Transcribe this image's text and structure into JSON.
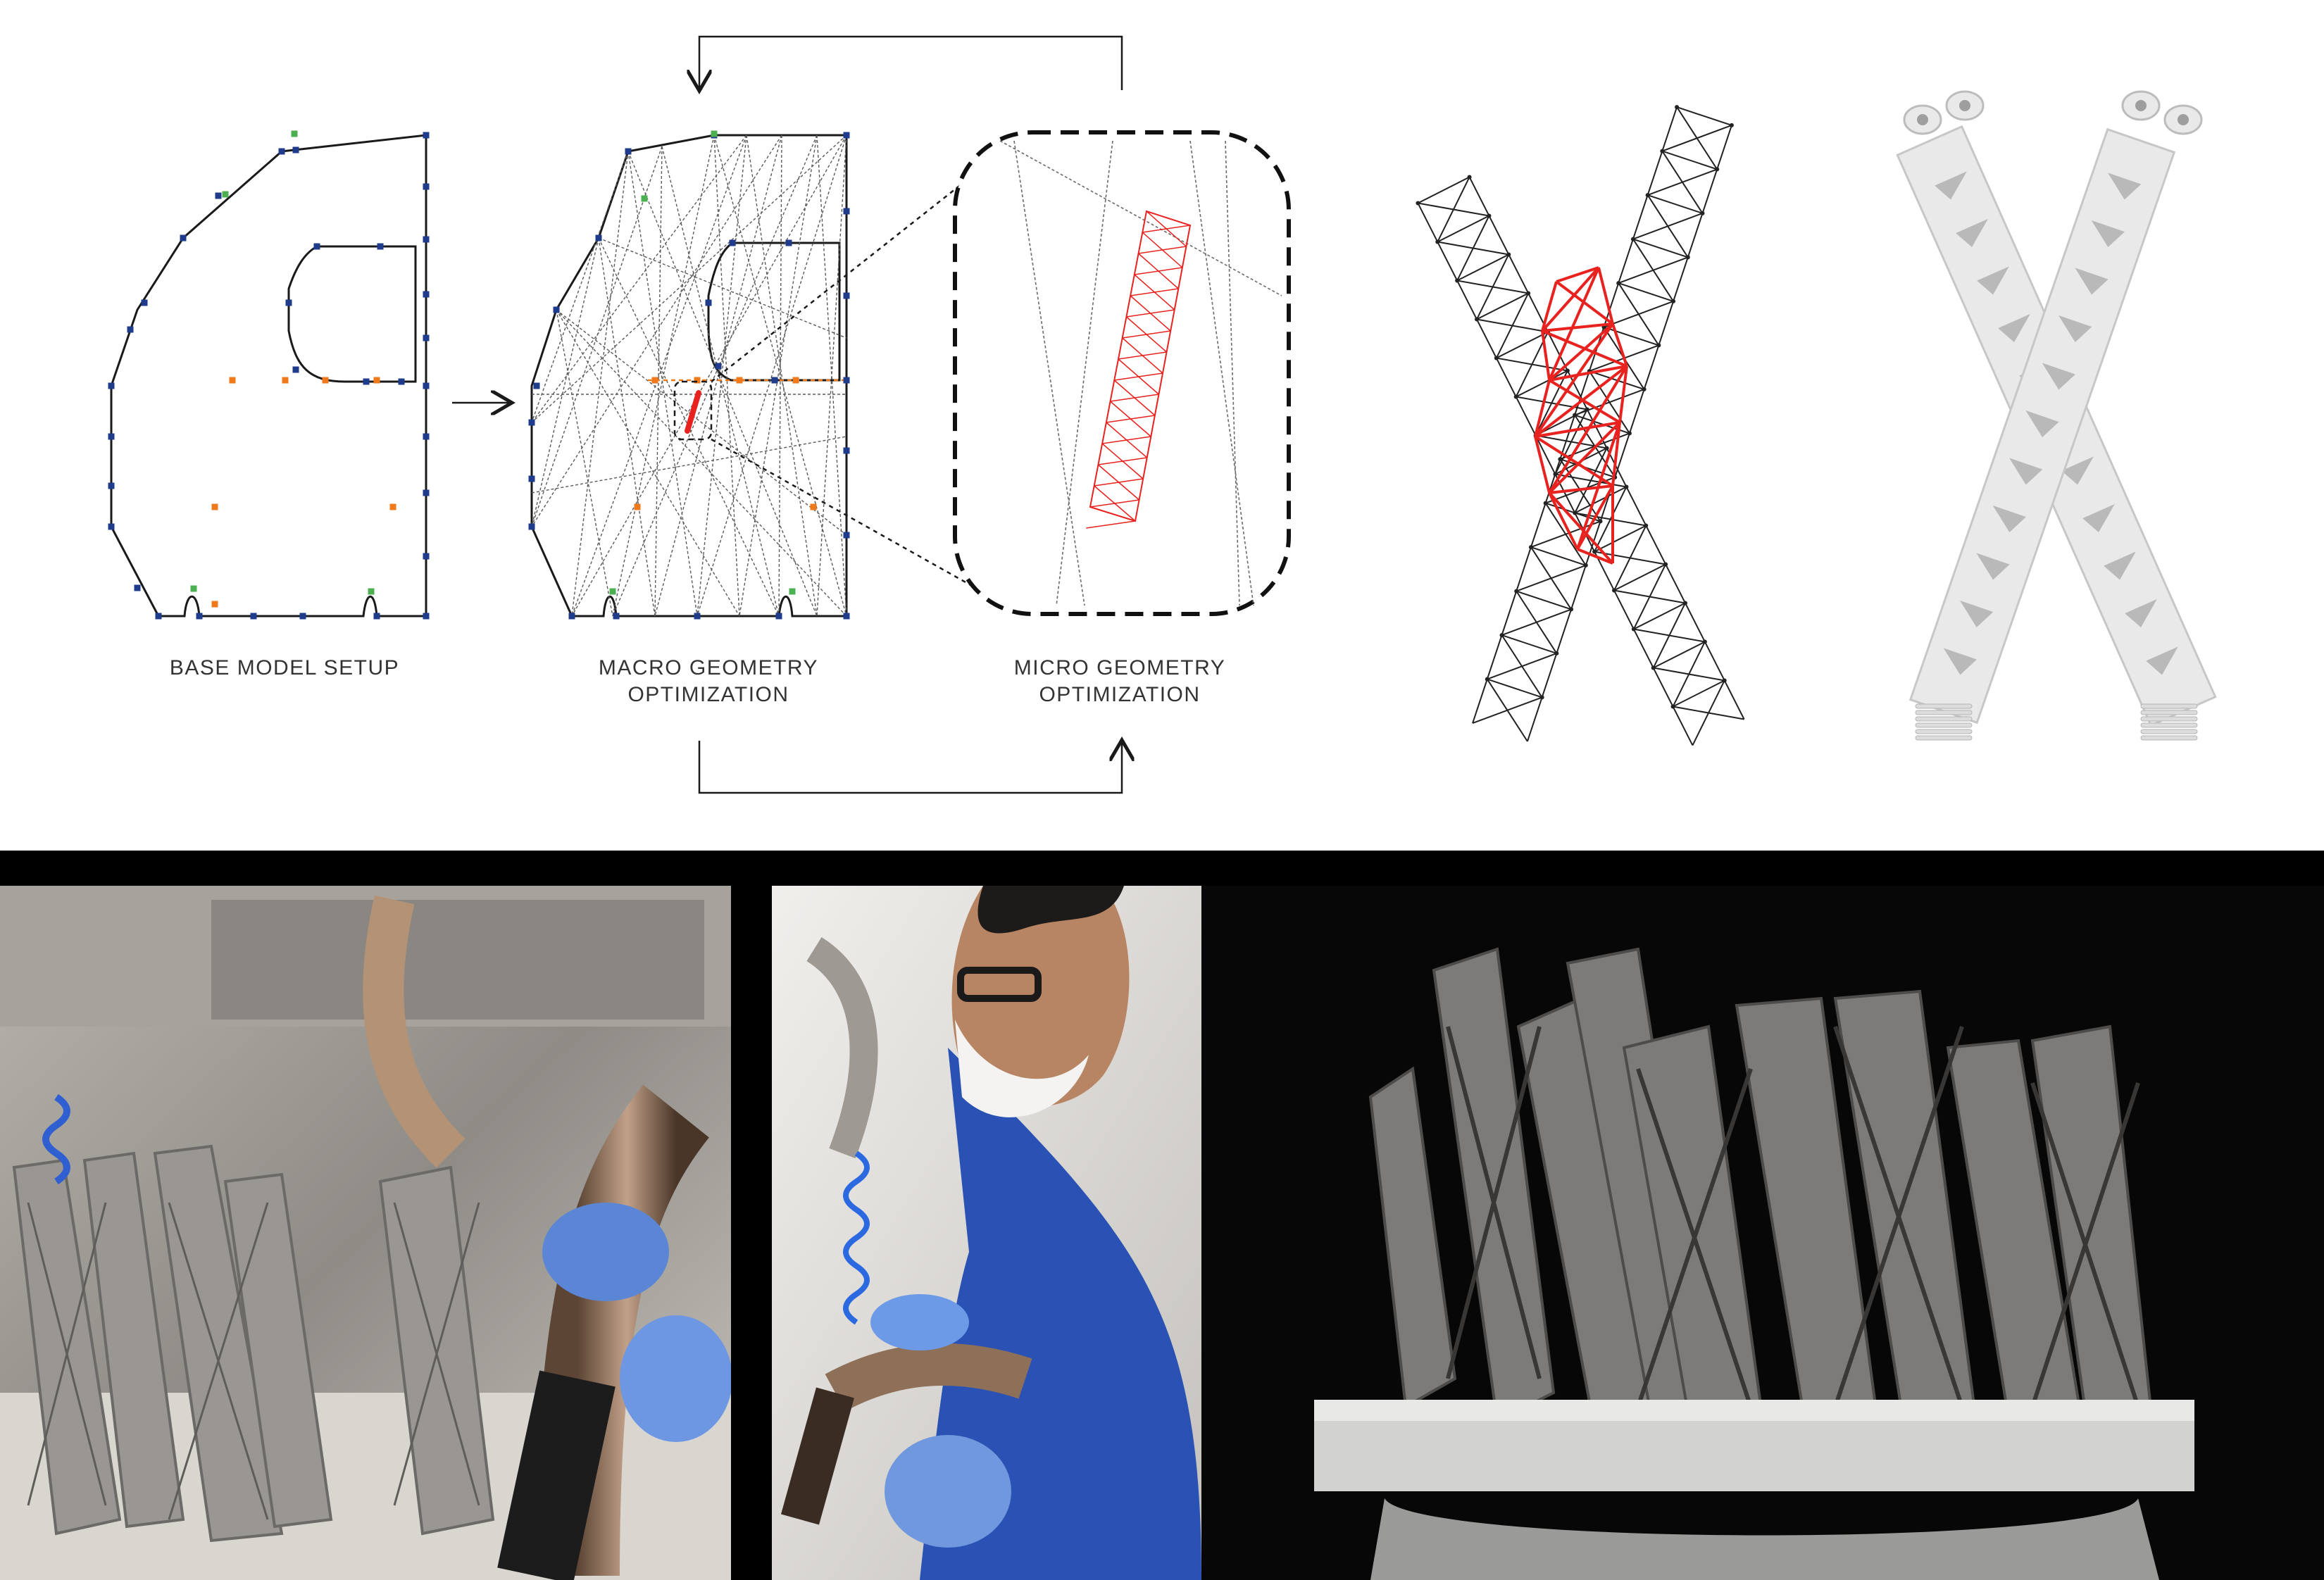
{
  "captions": {
    "base_model": "BASE MODEL SETUP",
    "macro_line1": "MACRO GEOMETRY",
    "macro_line2": "OPTIMIZATION",
    "micro_line1": "MICRO GEOMETRY",
    "micro_line2": "OPTIMIZATION"
  },
  "colors": {
    "outline": "#1a1a1a",
    "node_blue": "#1f3b8c",
    "node_green": "#4caf50",
    "load_orange": "#f07a1a",
    "highlight_red": "#e8231f",
    "lattice_gray": "#222222",
    "print_white": "#e9e9e9",
    "photo_background": "#000000"
  },
  "photos": [
    {
      "subject": "depowdering-station-parts"
    },
    {
      "subject": "technician-with-vacuum-hose"
    },
    {
      "subject": "printed-lattice-nodes-on-build-plate"
    }
  ]
}
